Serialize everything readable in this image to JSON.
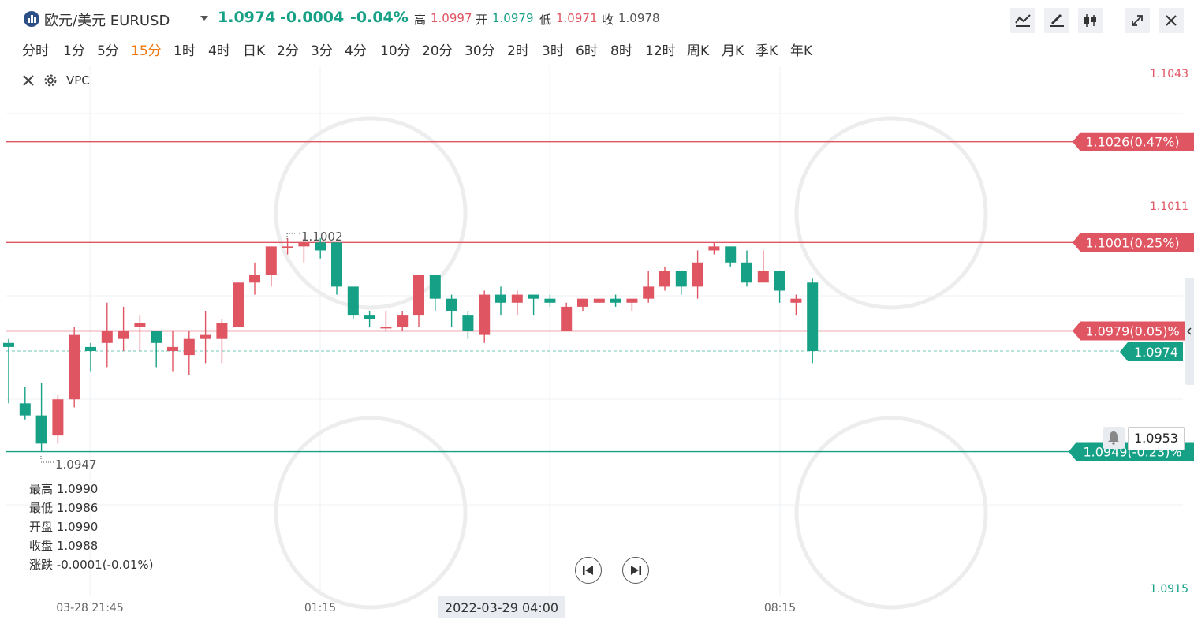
{
  "header": {
    "symbol": "欧元/美元 EURUSD",
    "price": "1.0974",
    "change": "-0.0004",
    "change_pct": "-0.04%",
    "high_label": "高",
    "high": "1.0997",
    "open_label": "开",
    "open": "1.0979",
    "low_label": "低",
    "low": "1.0971",
    "close_label": "收",
    "close": "1.0978"
  },
  "tools": [
    "indicator-icon",
    "draw-icon",
    "candle-type-icon",
    "fullscreen-icon",
    "close-icon"
  ],
  "timeframes": [
    "分时",
    "1分",
    "5分",
    "15分",
    "1时",
    "4时",
    "日K",
    "2分",
    "3分",
    "4分",
    "10分",
    "20分",
    "30分",
    "2时",
    "3时",
    "6时",
    "8时",
    "12时",
    "周K",
    "月K",
    "季K",
    "年K"
  ],
  "active_timeframe": "15分",
  "indicator": {
    "name": "VPC"
  },
  "info": {
    "high_label": "最高",
    "high": "1.0990",
    "low_label": "最低",
    "low": "1.0986",
    "open_label": "开盘",
    "open": "1.0990",
    "close_label": "收盘",
    "close": "1.0988",
    "change_label": "涨跌",
    "change": "-0.0001(-0.01%)"
  },
  "alert_price": "1.0953",
  "colors": {
    "up": "#e05562",
    "down": "#16a085",
    "accent": "#f0790f"
  },
  "chart_data": {
    "type": "candlestick",
    "ylim": [
      1.0915,
      1.1043
    ],
    "y_ticks": [
      "1.1043",
      "1.1011",
      "1.0915"
    ],
    "x_ticks": [
      "03-28 21:45",
      "01:15",
      "08:15"
    ],
    "crosshair_label": "2022-03-29 04:00",
    "current_price": "1.0974",
    "high_marker": "1.1002",
    "low_marker": "1.0947",
    "levels": [
      {
        "label": "1.1026(0.47%)",
        "value": 1.1026,
        "color": "#e05562"
      },
      {
        "label": "1.1001(0.25%)",
        "value": 1.1001,
        "color": "#e05562"
      },
      {
        "label": "1.0979(0.05)%",
        "value": 1.0979,
        "color": "#e05562"
      },
      {
        "label": "1.0949(-0.23)%",
        "value": 1.0949,
        "color": "#16a085"
      }
    ],
    "candles": [
      [
        1.0976,
        1.0975,
        1.0961,
        1.0977
      ],
      [
        1.0961,
        1.0958,
        1.0965,
        1.0957
      ],
      [
        1.0958,
        1.0951,
        1.0966,
        1.0949
      ],
      [
        1.0953,
        1.0962,
        1.0963,
        1.0951
      ],
      [
        1.0962,
        1.0978,
        1.098,
        1.096
      ],
      [
        1.0975,
        1.0974,
        1.0976,
        1.0969
      ],
      [
        1.0976,
        1.0979,
        1.0986,
        1.097
      ],
      [
        1.0977,
        1.0979,
        1.0985,
        1.0974
      ],
      [
        1.098,
        1.0981,
        1.0983,
        1.0974
      ],
      [
        1.0979,
        1.0976,
        1.0979,
        1.097
      ],
      [
        1.0974,
        1.0975,
        1.0979,
        1.0969
      ],
      [
        1.0973,
        1.0977,
        1.0979,
        1.0968
      ],
      [
        1.0977,
        1.0978,
        1.0984,
        1.0971
      ],
      [
        1.0977,
        1.0981,
        1.0982,
        1.0971
      ],
      [
        1.098,
        1.0991,
        1.0991,
        1.098
      ],
      [
        1.0991,
        1.0993,
        1.0996,
        1.0988
      ],
      [
        1.0993,
        1.1,
        1.1,
        1.099
      ],
      [
        1.1,
        1.1,
        1.1002,
        1.0998
      ],
      [
        1.1,
        1.1001,
        1.1002,
        1.0996
      ],
      [
        1.1001,
        1.0999,
        1.1002,
        1.0997
      ],
      [
        1.1001,
        1.099,
        1.1001,
        1.0988
      ],
      [
        1.099,
        1.0983,
        1.099,
        1.0982
      ],
      [
        1.0983,
        1.0982,
        1.0984,
        1.098
      ],
      [
        1.098,
        1.098,
        1.0984,
        1.0979
      ],
      [
        1.098,
        1.0983,
        1.0984,
        1.0979
      ],
      [
        1.0983,
        1.0993,
        1.0993,
        1.098
      ],
      [
        1.0993,
        1.0987,
        1.0993,
        1.0984
      ],
      [
        1.0987,
        1.0984,
        1.0988,
        1.098
      ],
      [
        1.0983,
        1.0979,
        1.0984,
        1.0977
      ],
      [
        1.0978,
        1.0988,
        1.0989,
        1.0976
      ],
      [
        1.0988,
        1.0986,
        1.099,
        1.0983
      ],
      [
        1.0986,
        1.0988,
        1.0989,
        1.0983
      ],
      [
        1.0988,
        1.0987,
        1.0988,
        1.0983
      ],
      [
        1.0987,
        1.0986,
        1.0988,
        1.0985
      ],
      [
        1.0979,
        1.0985,
        1.0986,
        1.0979
      ],
      [
        1.0985,
        1.0987,
        1.0987,
        1.0984
      ],
      [
        1.0986,
        1.0987,
        1.0987,
        1.0986
      ],
      [
        1.0987,
        1.0986,
        1.0988,
        1.0985
      ],
      [
        1.0986,
        1.0987,
        1.0987,
        1.0984
      ],
      [
        1.0987,
        1.099,
        1.0994,
        1.0986
      ],
      [
        1.099,
        1.0994,
        1.0995,
        1.0989
      ],
      [
        1.0994,
        1.099,
        1.0994,
        1.0988
      ],
      [
        1.099,
        1.0996,
        1.0999,
        1.0987
      ],
      [
        1.0999,
        1.1,
        1.1001,
        1.0998
      ],
      [
        1.1,
        1.0996,
        1.1,
        1.0995
      ],
      [
        1.0996,
        1.0991,
        1.0999,
        1.099
      ],
      [
        1.0991,
        1.0994,
        1.0999,
        1.0991
      ],
      [
        1.0994,
        1.0989,
        1.0994,
        1.0986
      ],
      [
        1.0986,
        1.0987,
        1.0988,
        1.0983
      ],
      [
        1.0991,
        1.0974,
        1.0992,
        1.0971
      ]
    ]
  }
}
